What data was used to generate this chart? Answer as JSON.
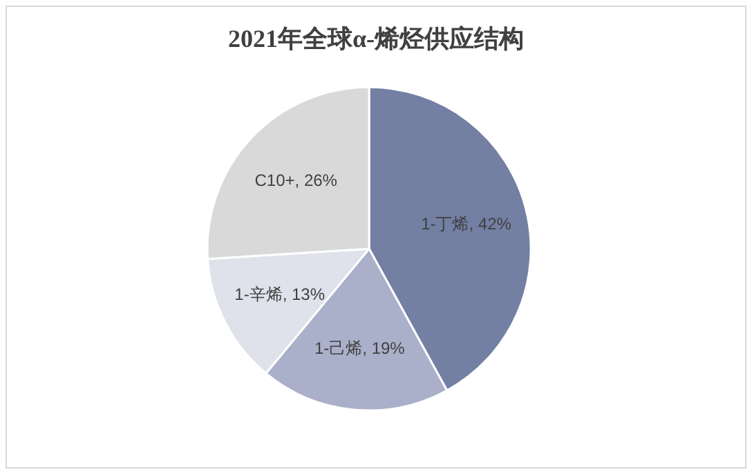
{
  "chart_data": {
    "type": "pie",
    "title": "2021年全球α-烯烃供应结构",
    "categories": [
      "1-丁烯",
      "1-己烯",
      "1-辛烯",
      "C10+"
    ],
    "values": [
      42,
      19,
      13,
      26
    ],
    "colors": [
      "#737fa3",
      "#aab0c9",
      "#dfe2ea",
      "#d9d9d9"
    ],
    "value_labels": [
      "42%",
      "19%",
      "13%",
      "26%"
    ]
  }
}
